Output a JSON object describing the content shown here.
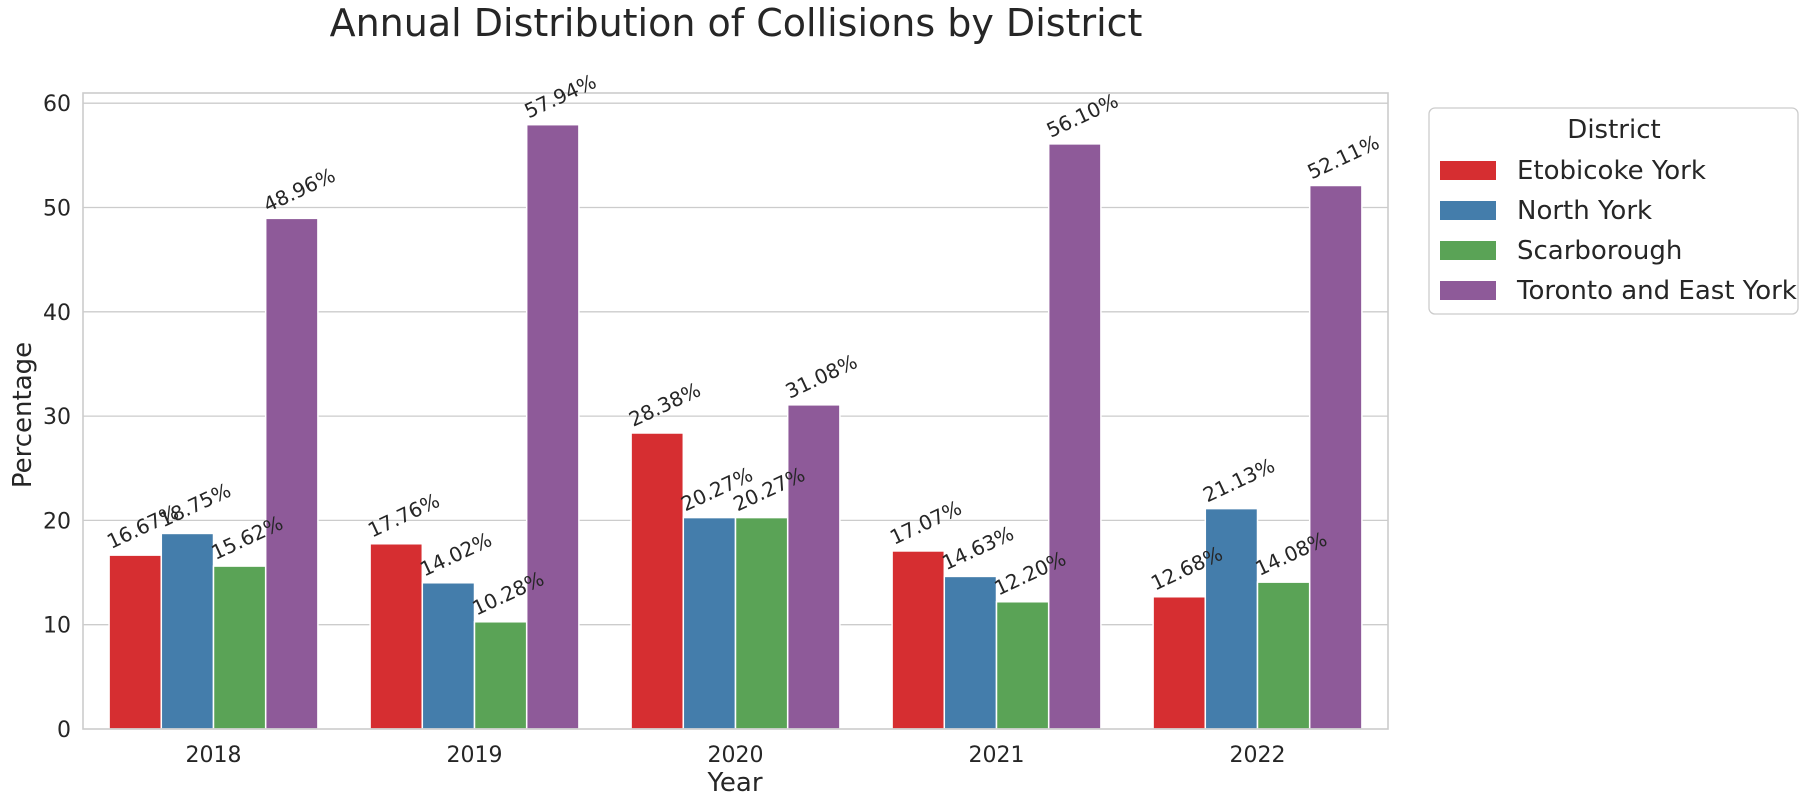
{
  "chart_data": {
    "type": "bar",
    "title": "Annual Distribution of Collisions by District",
    "xlabel": "Year",
    "ylabel": "Percentage",
    "categories": [
      "2018",
      "2019",
      "2020",
      "2021",
      "2022"
    ],
    "ylim": [
      0,
      61
    ],
    "yticks": [
      0,
      10,
      20,
      30,
      40,
      50,
      60
    ],
    "grid": "horizontal",
    "legend": {
      "title": "District",
      "placement": "outside-top-right"
    },
    "series": [
      {
        "name": "Etobicoke York",
        "color": "#d62e31",
        "values": [
          16.67,
          17.76,
          28.38,
          17.07,
          12.68
        ],
        "labels": [
          "16.67%",
          "17.76%",
          "28.38%",
          "17.07%",
          "12.68%"
        ]
      },
      {
        "name": "North York",
        "color": "#447dab",
        "values": [
          18.75,
          14.02,
          20.27,
          14.63,
          21.13
        ],
        "labels": [
          "18.75%",
          "14.02%",
          "20.27%",
          "14.63%",
          "21.13%"
        ]
      },
      {
        "name": "Scarborough",
        "color": "#5aa356",
        "values": [
          15.62,
          10.28,
          20.27,
          12.2,
          14.08
        ],
        "labels": [
          "15.62%",
          "10.28%",
          "20.27%",
          "12.20%",
          "14.08%"
        ]
      },
      {
        "name": "Toronto and East York",
        "color": "#8e5a99",
        "values": [
          48.96,
          57.94,
          31.08,
          56.1,
          52.11
        ],
        "labels": [
          "48.96%",
          "57.94%",
          "31.08%",
          "56.10%",
          "52.11%"
        ]
      }
    ]
  }
}
